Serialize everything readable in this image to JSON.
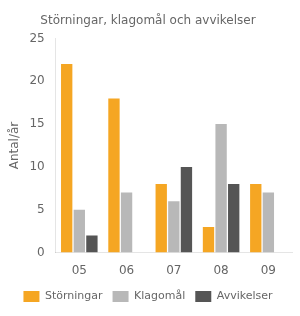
{
  "chart_data": {
    "type": "bar",
    "title": "Störningar, klagomål och avvikelser",
    "ylabel": "Antal/år",
    "categories": [
      "05",
      "06",
      "07",
      "08",
      "09"
    ],
    "series": [
      {
        "name": "Störningar",
        "color": "#f5a623",
        "values": [
          22,
          18,
          8,
          3,
          8
        ]
      },
      {
        "name": "Klagomål",
        "color": "#b8b8b8",
        "values": [
          5,
          7,
          6,
          15,
          7
        ]
      },
      {
        "name": "Avvikelser",
        "color": "#555555",
        "values": [
          2,
          0,
          10,
          8,
          0
        ]
      }
    ],
    "ylim": [
      0,
      25
    ],
    "yticks": [
      0,
      5,
      10,
      15,
      20,
      25
    ],
    "grid": false,
    "legend": "bottom"
  }
}
